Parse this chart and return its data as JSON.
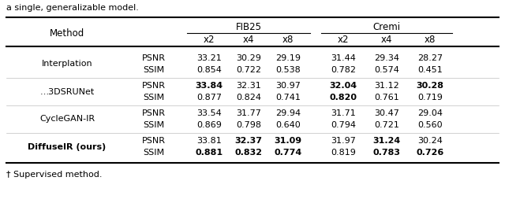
{
  "title_top": "a single, generalizable model.",
  "footnote": "† Supervised method.",
  "group1_header": "FIB25",
  "group2_header": "Cremi",
  "sub_headers": [
    "x2",
    "x4",
    "x8",
    "x2",
    "x4",
    "x8"
  ],
  "methods": [
    "Interplation",
    "…3DSRUNet",
    "CycleGAN-IR",
    "DiffuseIR (ours)"
  ],
  "methods_bold": [
    false,
    false,
    false,
    true
  ],
  "method_dagger": [
    false,
    true,
    false,
    false
  ],
  "metrics": [
    "PSNR",
    "SSIM"
  ],
  "data": {
    "Interplation": {
      "PSNR": [
        "33.21",
        "30.29",
        "29.19",
        "31.44",
        "29.34",
        "28.27"
      ],
      "SSIM": [
        "0.854",
        "0.722",
        "0.538",
        "0.782",
        "0.574",
        "0.451"
      ],
      "PSNR_bold": [
        false,
        false,
        false,
        false,
        false,
        false
      ],
      "SSIM_bold": [
        false,
        false,
        false,
        false,
        false,
        false
      ]
    },
    "…3DSRUNet": {
      "PSNR": [
        "33.84",
        "32.31",
        "30.97",
        "32.04",
        "31.12",
        "30.28"
      ],
      "SSIM": [
        "0.877",
        "0.824",
        "0.741",
        "0.820",
        "0.761",
        "0.719"
      ],
      "PSNR_bold": [
        true,
        false,
        false,
        true,
        false,
        true
      ],
      "SSIM_bold": [
        false,
        false,
        false,
        true,
        false,
        false
      ]
    },
    "CycleGAN-IR": {
      "PSNR": [
        "33.54",
        "31.77",
        "29.94",
        "31.71",
        "30.47",
        "29.04"
      ],
      "SSIM": [
        "0.869",
        "0.798",
        "0.640",
        "0.794",
        "0.721",
        "0.560"
      ],
      "PSNR_bold": [
        false,
        false,
        false,
        false,
        false,
        false
      ],
      "SSIM_bold": [
        false,
        false,
        false,
        false,
        false,
        false
      ]
    },
    "DiffuseIR (ours)": {
      "PSNR": [
        "33.81",
        "32.37",
        "31.09",
        "31.97",
        "31.24",
        "30.24"
      ],
      "SSIM": [
        "0.881",
        "0.832",
        "0.774",
        "0.819",
        "0.783",
        "0.726"
      ],
      "PSNR_bold": [
        false,
        true,
        true,
        false,
        true,
        false
      ],
      "SSIM_bold": [
        true,
        true,
        true,
        false,
        true,
        true
      ]
    }
  },
  "bg_color": "white",
  "font_size": 8.0,
  "header_font_size": 8.5
}
